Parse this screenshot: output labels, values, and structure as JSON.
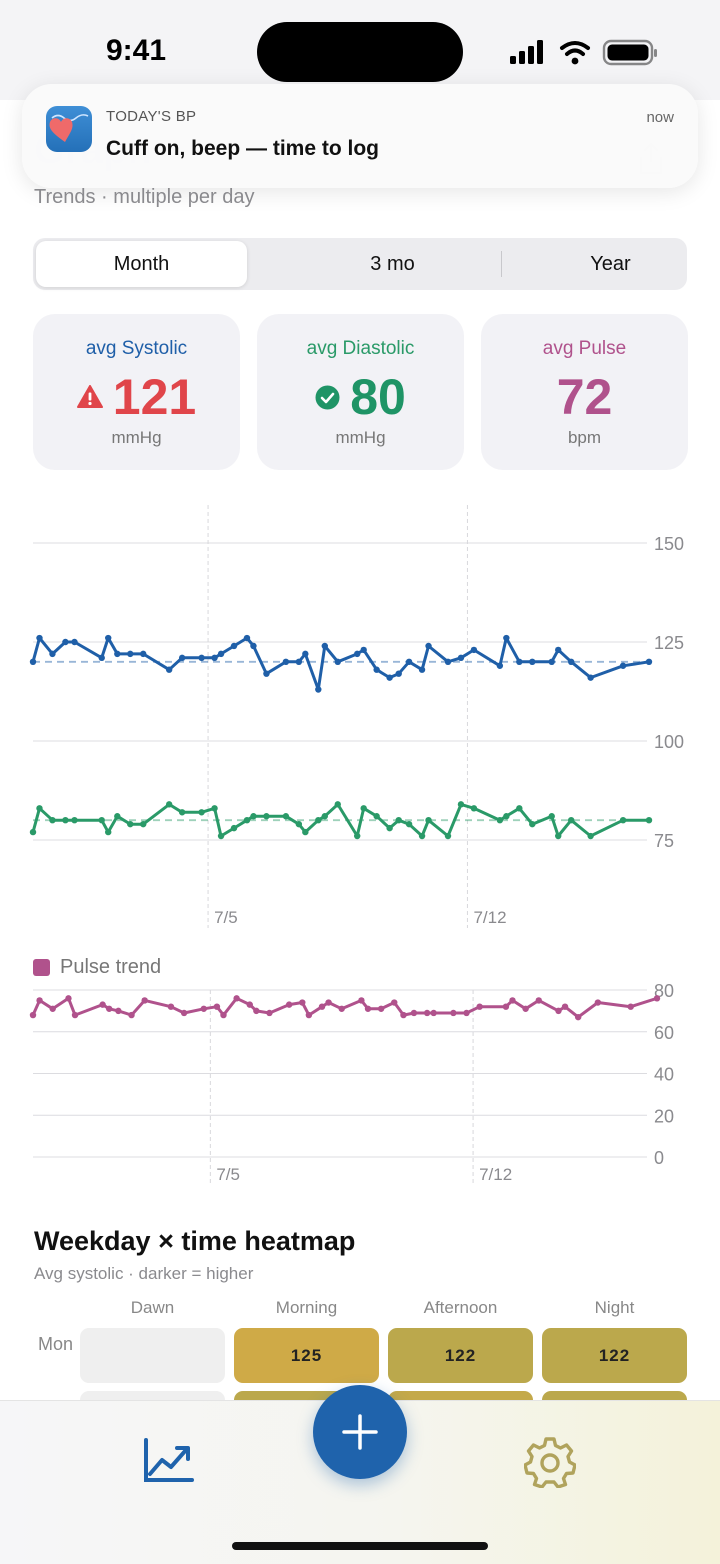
{
  "status": {
    "time": "9:41"
  },
  "notification": {
    "app_name": "TODAY'S BP",
    "time": "now",
    "message": "Cuff on, beep — time to log"
  },
  "header": {
    "subtitle": "Trends · multiple per day"
  },
  "range_tabs": {
    "items": [
      "Month",
      "3 mo",
      "Year"
    ],
    "selected": "Month"
  },
  "summary": {
    "systolic": {
      "label": "avg Systolic",
      "value": "121",
      "unit": "mmHg",
      "color": "#1f5fa8",
      "value_color": "#e0454a",
      "status_icon": "warning-icon"
    },
    "diastolic": {
      "label": "avg Diastolic",
      "value": "80",
      "unit": "mmHg",
      "color": "#2a9a68",
      "value_color": "#1f9466",
      "status_icon": "check-circle-icon"
    },
    "pulse": {
      "label": "avg Pulse",
      "value": "72",
      "unit": "bpm",
      "color": "#b0528c",
      "value_color": "#b0528c"
    }
  },
  "chart_data": [
    {
      "type": "line",
      "title": "",
      "y_ticks": [
        "150",
        "125",
        "100",
        "75"
      ],
      "ylim": [
        75,
        150
      ],
      "x_labels": [
        {
          "label": "7/5",
          "at": 13.5
        },
        {
          "label": "7/12",
          "at": 33.5
        }
      ],
      "reference_lines": [
        {
          "series": "Systolic",
          "value": 120
        },
        {
          "series": "Diastolic",
          "value": 80
        }
      ],
      "series": [
        {
          "name": "Systolic",
          "color": "#1f5fa8",
          "x": [
            0,
            0.5,
            1.5,
            2.5,
            3.2,
            5.3,
            5.8,
            6.5,
            7.5,
            8.5,
            10.5,
            11.5,
            13,
            14,
            14.5,
            15.5,
            16.5,
            17,
            18,
            19.5,
            20.5,
            21,
            22,
            22.5,
            23.5,
            25,
            25.5,
            26.5,
            27.5,
            28.2,
            29,
            30,
            30.5,
            32,
            33,
            34,
            36,
            36.5,
            37.5,
            38.5,
            40,
            40.5,
            41.5,
            43,
            45.5,
            47.5
          ],
          "y": [
            120,
            126,
            122,
            125,
            125,
            121,
            126,
            122,
            122,
            122,
            118,
            121,
            121,
            121,
            122,
            124,
            126,
            124,
            117,
            120,
            120,
            122,
            113,
            124,
            120,
            122,
            123,
            118,
            116,
            117,
            120,
            118,
            124,
            120,
            121,
            123,
            119,
            126,
            120,
            120,
            120,
            123,
            120,
            116,
            119,
            120
          ]
        },
        {
          "name": "Diastolic",
          "color": "#2a9a68",
          "x": [
            0,
            0.5,
            1.5,
            2.5,
            3.2,
            5.3,
            5.8,
            6.5,
            7.5,
            8.5,
            10.5,
            11.5,
            13,
            14,
            14.5,
            15.5,
            16.5,
            17,
            18,
            19.5,
            20.5,
            21,
            22,
            22.5,
            23.5,
            25,
            25.5,
            26.5,
            27.5,
            28.2,
            29,
            30,
            30.5,
            32,
            33,
            34,
            36,
            36.5,
            37.5,
            38.5,
            40,
            40.5,
            41.5,
            43,
            45.5,
            47.5
          ],
          "y": [
            77,
            83,
            80,
            80,
            80,
            80,
            77,
            81,
            79,
            79,
            84,
            82,
            82,
            83,
            76,
            78,
            80,
            81,
            81,
            81,
            79,
            77,
            80,
            81,
            84,
            76,
            83,
            81,
            78,
            80,
            79,
            76,
            80,
            76,
            84,
            83,
            80,
            81,
            83,
            79,
            81,
            76,
            80,
            76,
            80,
            80
          ]
        }
      ]
    },
    {
      "type": "line",
      "title": "",
      "legend": [
        "Pulse trend"
      ],
      "y_ticks": [
        "80",
        "60",
        "40",
        "20",
        "0"
      ],
      "ylim": [
        0,
        80
      ],
      "x_labels": [
        {
          "label": "7/5",
          "at": 13.5
        },
        {
          "label": "7/12",
          "at": 33.5
        }
      ],
      "series": [
        {
          "name": "Pulse trend",
          "color": "#b0528c",
          "x": [
            0,
            0.5,
            1.5,
            2.7,
            3.2,
            5.3,
            5.8,
            6.5,
            7.5,
            8.5,
            10.5,
            11.5,
            13,
            14,
            14.5,
            15.5,
            16.5,
            17,
            18,
            19.5,
            20.5,
            21,
            22,
            22.5,
            23.5,
            25,
            25.5,
            26.5,
            27.5,
            28.2,
            29,
            30,
            30.5,
            32,
            33,
            34,
            36,
            36.5,
            37.5,
            38.5,
            40,
            40.5,
            41.5,
            43,
            45.5,
            47.5
          ],
          "y": [
            68,
            75,
            71,
            76,
            68,
            73,
            71,
            70,
            68,
            75,
            72,
            69,
            71,
            72,
            68,
            76,
            73,
            70,
            69,
            73,
            74,
            68,
            72,
            74,
            71,
            75,
            71,
            71,
            74,
            68,
            69,
            69,
            69,
            69,
            69,
            72,
            72,
            75,
            71,
            75,
            70,
            72,
            67,
            74,
            72,
            76
          ]
        }
      ]
    }
  ],
  "heatmap": {
    "title": "Weekday × time heatmap",
    "subtitle": "Avg systolic · darker = higher",
    "columns": [
      "Dawn",
      "Morning",
      "Afternoon",
      "Night"
    ],
    "rows": [
      {
        "label": "Mon",
        "values": [
          "",
          "125",
          "122",
          "122"
        ],
        "colors": [
          "#efefef",
          "#cfaa47",
          "#bba84c",
          "#bba84c"
        ]
      }
    ]
  },
  "tabbar": {
    "left_icon": "line-chart-icon",
    "center_icon": "plus-icon",
    "right_icon": "gear-icon"
  }
}
